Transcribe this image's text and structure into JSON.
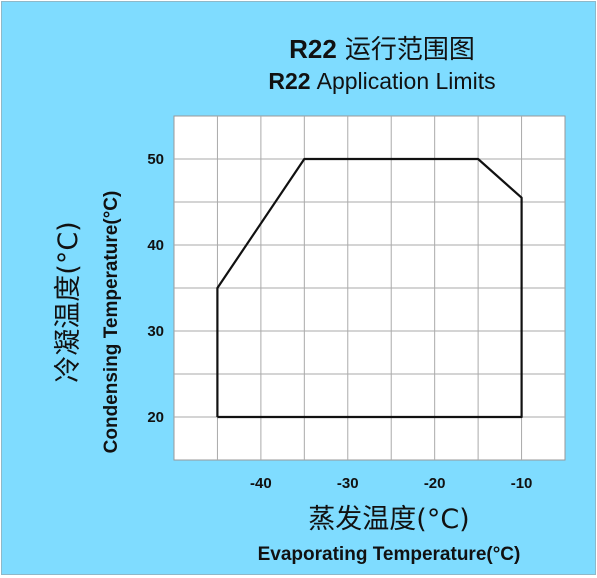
{
  "chart_data": {
    "type": "line",
    "title_line1": {
      "bold": "R22",
      "rest": "运行范围图"
    },
    "title_line2": {
      "bold": "R22",
      "rest": "Application Limits"
    },
    "xlabel_cn": "蒸发温度(°C)",
    "xlabel_en": "Evaporating Temperature(°C)",
    "ylabel_cn": "冷凝温度(°C)",
    "ylabel_en": "Condensing Temperature(°C)",
    "xlim": [
      -50,
      -5
    ],
    "ylim": [
      15,
      55
    ],
    "xticks": [
      -40,
      -30,
      -20,
      -10
    ],
    "xtick_labels": [
      "-40",
      "-30",
      "-20",
      "-10"
    ],
    "yticks": [
      20,
      30,
      40,
      50
    ],
    "ytick_labels": [
      "20",
      "30",
      "40",
      "50"
    ],
    "grid": true,
    "series": [
      {
        "x": [
          -45,
          -45,
          -35,
          -15,
          -10,
          -10,
          -45
        ],
        "y": [
          20,
          35,
          50,
          50,
          45.5,
          20,
          20
        ]
      }
    ],
    "colors": {
      "background": "#7fdcff",
      "plot_bg": "#ffffff",
      "line": "#111111",
      "grid": "#aaaaaa"
    }
  }
}
